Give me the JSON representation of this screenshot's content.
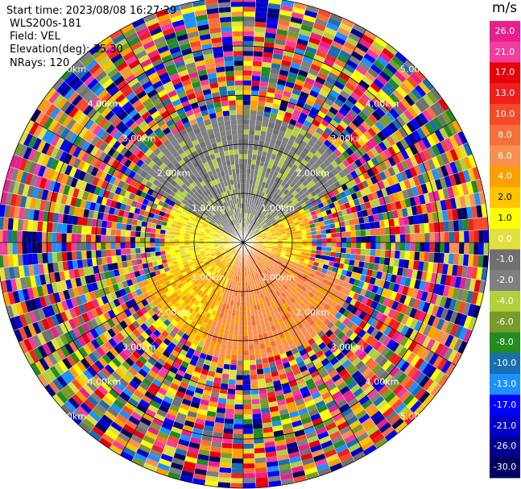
{
  "header": {
    "start_time": "Start time: 2023/08/08 16:27:29",
    "station": "WLS200s-181",
    "field": "Field: VEL",
    "elevation": "Elevation(deg): 35.30",
    "nrays": "NRays: 120"
  },
  "colorbar": {
    "unit": "m/s",
    "ticks": [
      "26.0",
      "21.0",
      "17.0",
      "13.0",
      "10.0",
      "8.0",
      "6.0",
      "4.0",
      "2.0",
      "1.0",
      "0.0",
      "-1.0",
      "-2.0",
      "-4.0",
      "-6.0",
      "-8.0",
      "-10.0",
      "-13.0",
      "-17.0",
      "-21.0",
      "-26.0",
      "-30.0"
    ],
    "colors": [
      "#e8208e",
      "#f23d9c",
      "#e8000a",
      "#f01e1e",
      "#f54a2a",
      "#f5703a",
      "#f89050",
      "#fba000",
      "#ffc400",
      "#ffff00",
      "#e0e040",
      "#707070",
      "#808080",
      "#b0d040",
      "#7a9a2a",
      "#228b22",
      "#1a6eb0",
      "#1e90ff",
      "#0000ff",
      "#0000cc",
      "#000090",
      "#000060"
    ]
  },
  "chart_data": {
    "type": "heatmap",
    "title": "",
    "field": "VEL",
    "units": "m/s",
    "range_rings_km": [
      1.0,
      2.0,
      3.0,
      4.0,
      5.0
    ],
    "range_ring_labels": [
      "1.00km",
      "2.00km",
      "3.00km",
      "4.00km",
      "5.00km"
    ],
    "max_range_km": 5.0,
    "nrays": 120,
    "elevation_deg": 35.3,
    "colorscale_min": -30.0,
    "colorscale_max": 26.0,
    "sectors": [
      {
        "azimuth_range_deg": [
          300,
          60
        ],
        "range_km": [
          0.0,
          2.6
        ],
        "velocity": -3.0
      },
      {
        "azimuth_range_deg": [
          60,
          110
        ],
        "range_km": [
          0.0,
          1.4
        ],
        "velocity": 1.5
      },
      {
        "azimuth_range_deg": [
          110,
          200
        ],
        "range_km": [
          0.0,
          2.4
        ],
        "velocity": 5.0
      },
      {
        "azimuth_range_deg": [
          200,
          250
        ],
        "range_km": [
          0.0,
          2.2
        ],
        "velocity": 2.0
      },
      {
        "azimuth_range_deg": [
          250,
          300
        ],
        "range_km": [
          0.0,
          1.6
        ],
        "velocity": 0.5
      }
    ],
    "outer_noise_range_km": [
      2.6,
      5.0
    ]
  }
}
